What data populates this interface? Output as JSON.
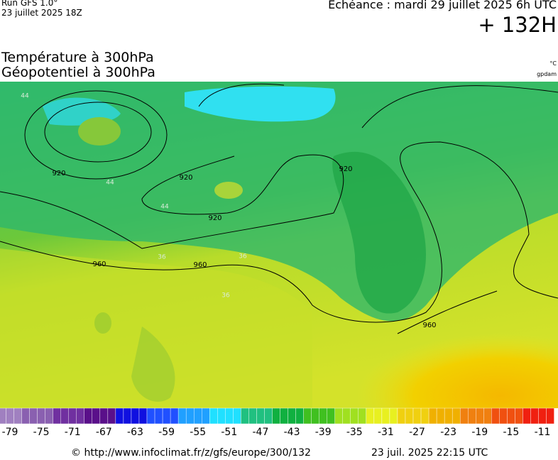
{
  "header": {
    "run": "Run GFS 1.0°",
    "run_date": "23 juillet 2025 18Z",
    "valid": "Echéance : mardi 29 juillet 2025 6h UTC",
    "lead": "+ 132H"
  },
  "titles": {
    "line1": "Température à 300hPa",
    "line2": "Géopotentiel à 300hPa",
    "unit1": "°C",
    "unit2": "gpdam"
  },
  "map": {
    "contour_labels": [
      "920",
      "920",
      "920",
      "920",
      "960",
      "960",
      "960",
      "44",
      "44",
      "44",
      "36",
      "36",
      "36"
    ]
  },
  "colorbar": {
    "ticks": [
      -79,
      -75,
      -71,
      -67,
      -63,
      -59,
      -55,
      -51,
      -47,
      -43,
      -39,
      -35,
      -31,
      -27,
      -23,
      -19,
      -15,
      -11
    ]
  },
  "footer": {
    "url": "© http://www.infoclimat.fr/z/gfs/europe/300/132",
    "generated": "23 juil. 2025 22:15 UTC"
  }
}
